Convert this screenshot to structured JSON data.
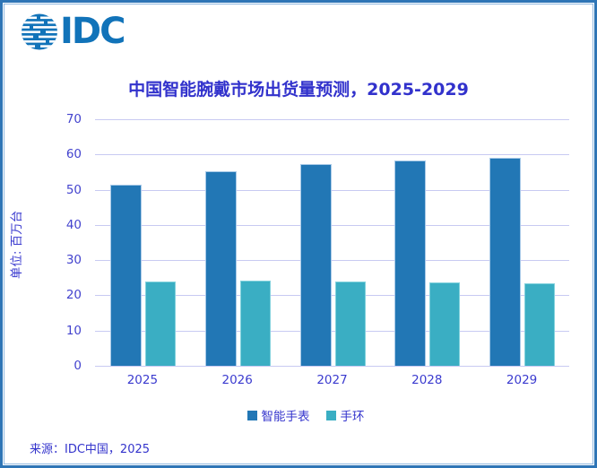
{
  "logo": {
    "text": "IDC"
  },
  "source": "来源：IDC中国，2025",
  "colors": {
    "logo_blue": "#1173B9",
    "title_text": "#3232CC",
    "axis_text": "#3B3BCF",
    "gridline": "#C8CAF2",
    "border": "#2E75B6",
    "watch_bar": "#2277B5",
    "band_bar": "#3AAEC3"
  },
  "chart_data": {
    "type": "bar",
    "title": "中国智能腕戴市场出货量预测，2025-2029",
    "ylabel": "单位: 百万台",
    "xlabel": "",
    "categories": [
      "2025",
      "2026",
      "2027",
      "2028",
      "2029"
    ],
    "series": [
      {
        "name": "智能手表",
        "color": "#2277B5",
        "values": [
          51.5,
          55.3,
          57.3,
          58.4,
          59.0
        ]
      },
      {
        "name": "手环",
        "color": "#3AAEC3",
        "values": [
          24.0,
          24.2,
          24.0,
          23.8,
          23.4
        ]
      }
    ],
    "ylim": [
      0,
      70
    ],
    "yticks": [
      0,
      10,
      20,
      30,
      40,
      50,
      60,
      70
    ],
    "grid": true,
    "legend_position": "bottom"
  }
}
